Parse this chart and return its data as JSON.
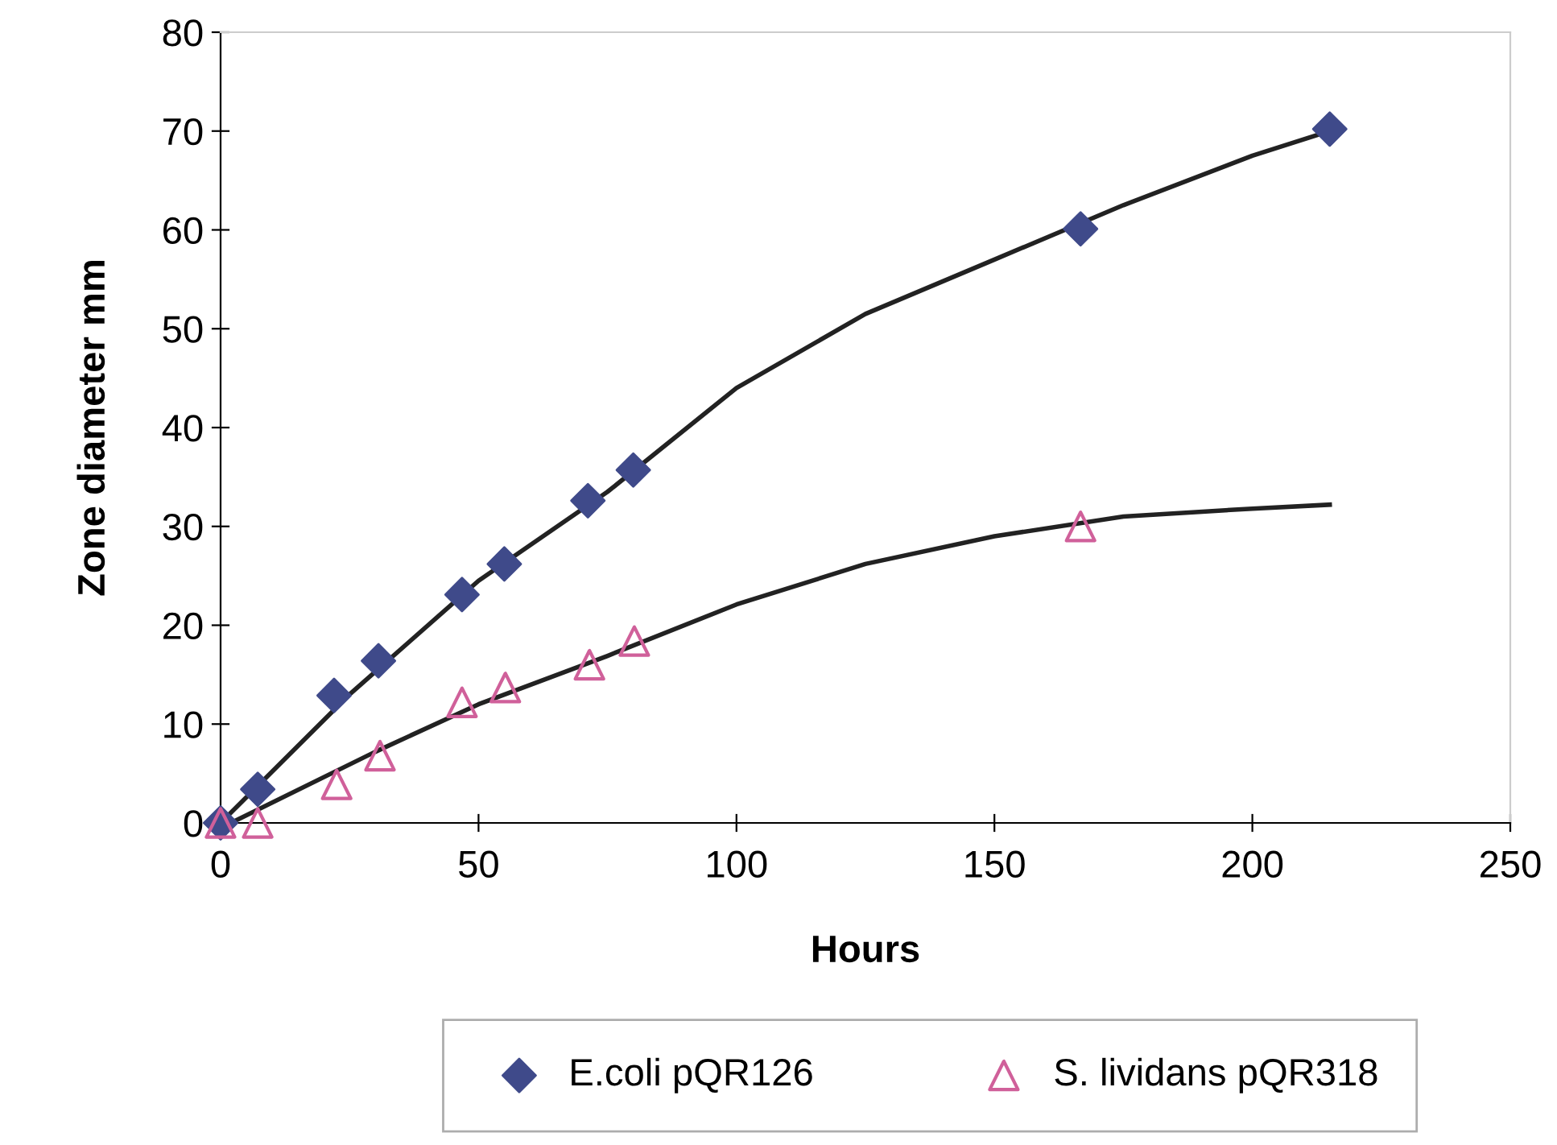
{
  "chart_data": {
    "type": "scatter",
    "xlabel": "Hours",
    "ylabel": "Zone diameter mm",
    "xlim": [
      0,
      250
    ],
    "xticks": [
      0,
      50,
      100,
      150,
      200,
      250
    ],
    "ylim": [
      0,
      80
    ],
    "yticks": [
      0,
      10,
      20,
      30,
      40,
      50,
      60,
      70,
      80
    ],
    "grid": false,
    "legend": "bottom",
    "series": [
      {
        "name": "E.coli pQR126",
        "marker": "diamond",
        "color": "#3f4a8a",
        "x": [
          0,
          7.2,
          22,
          30.6,
          46.8,
          55,
          71.2,
          80,
          166.7,
          215
        ],
        "values": [
          0,
          3.4,
          12.9,
          16.4,
          23.1,
          26.2,
          32.6,
          35.7,
          60.1,
          70.2
        ]
      },
      {
        "name": "S. lividans pQR318",
        "marker": "triangle",
        "color": "#d0609a",
        "x": [
          0,
          7.2,
          22.5,
          30.9,
          46.8,
          55.2,
          71.5,
          80.2,
          166.7
        ],
        "values": [
          0,
          0,
          3.9,
          6.8,
          12.2,
          13.7,
          16,
          18.4,
          30
        ]
      },
      {
        "type": "line",
        "color": "#222222",
        "marker": "none",
        "x": [
          0,
          25,
          50,
          75,
          100,
          125,
          150,
          175,
          200,
          215
        ],
        "values": [
          0,
          13,
          24.5,
          33.5,
          44,
          51.5,
          57,
          62.5,
          67.5,
          70
        ]
      },
      {
        "type": "line",
        "color": "#222222",
        "marker": "none",
        "x": [
          2,
          30,
          50,
          75,
          100,
          125,
          150,
          175,
          200,
          215
        ],
        "values": [
          0,
          7.2,
          12,
          16.9,
          22.1,
          26.2,
          29,
          31,
          31.8,
          32.2
        ]
      }
    ]
  }
}
